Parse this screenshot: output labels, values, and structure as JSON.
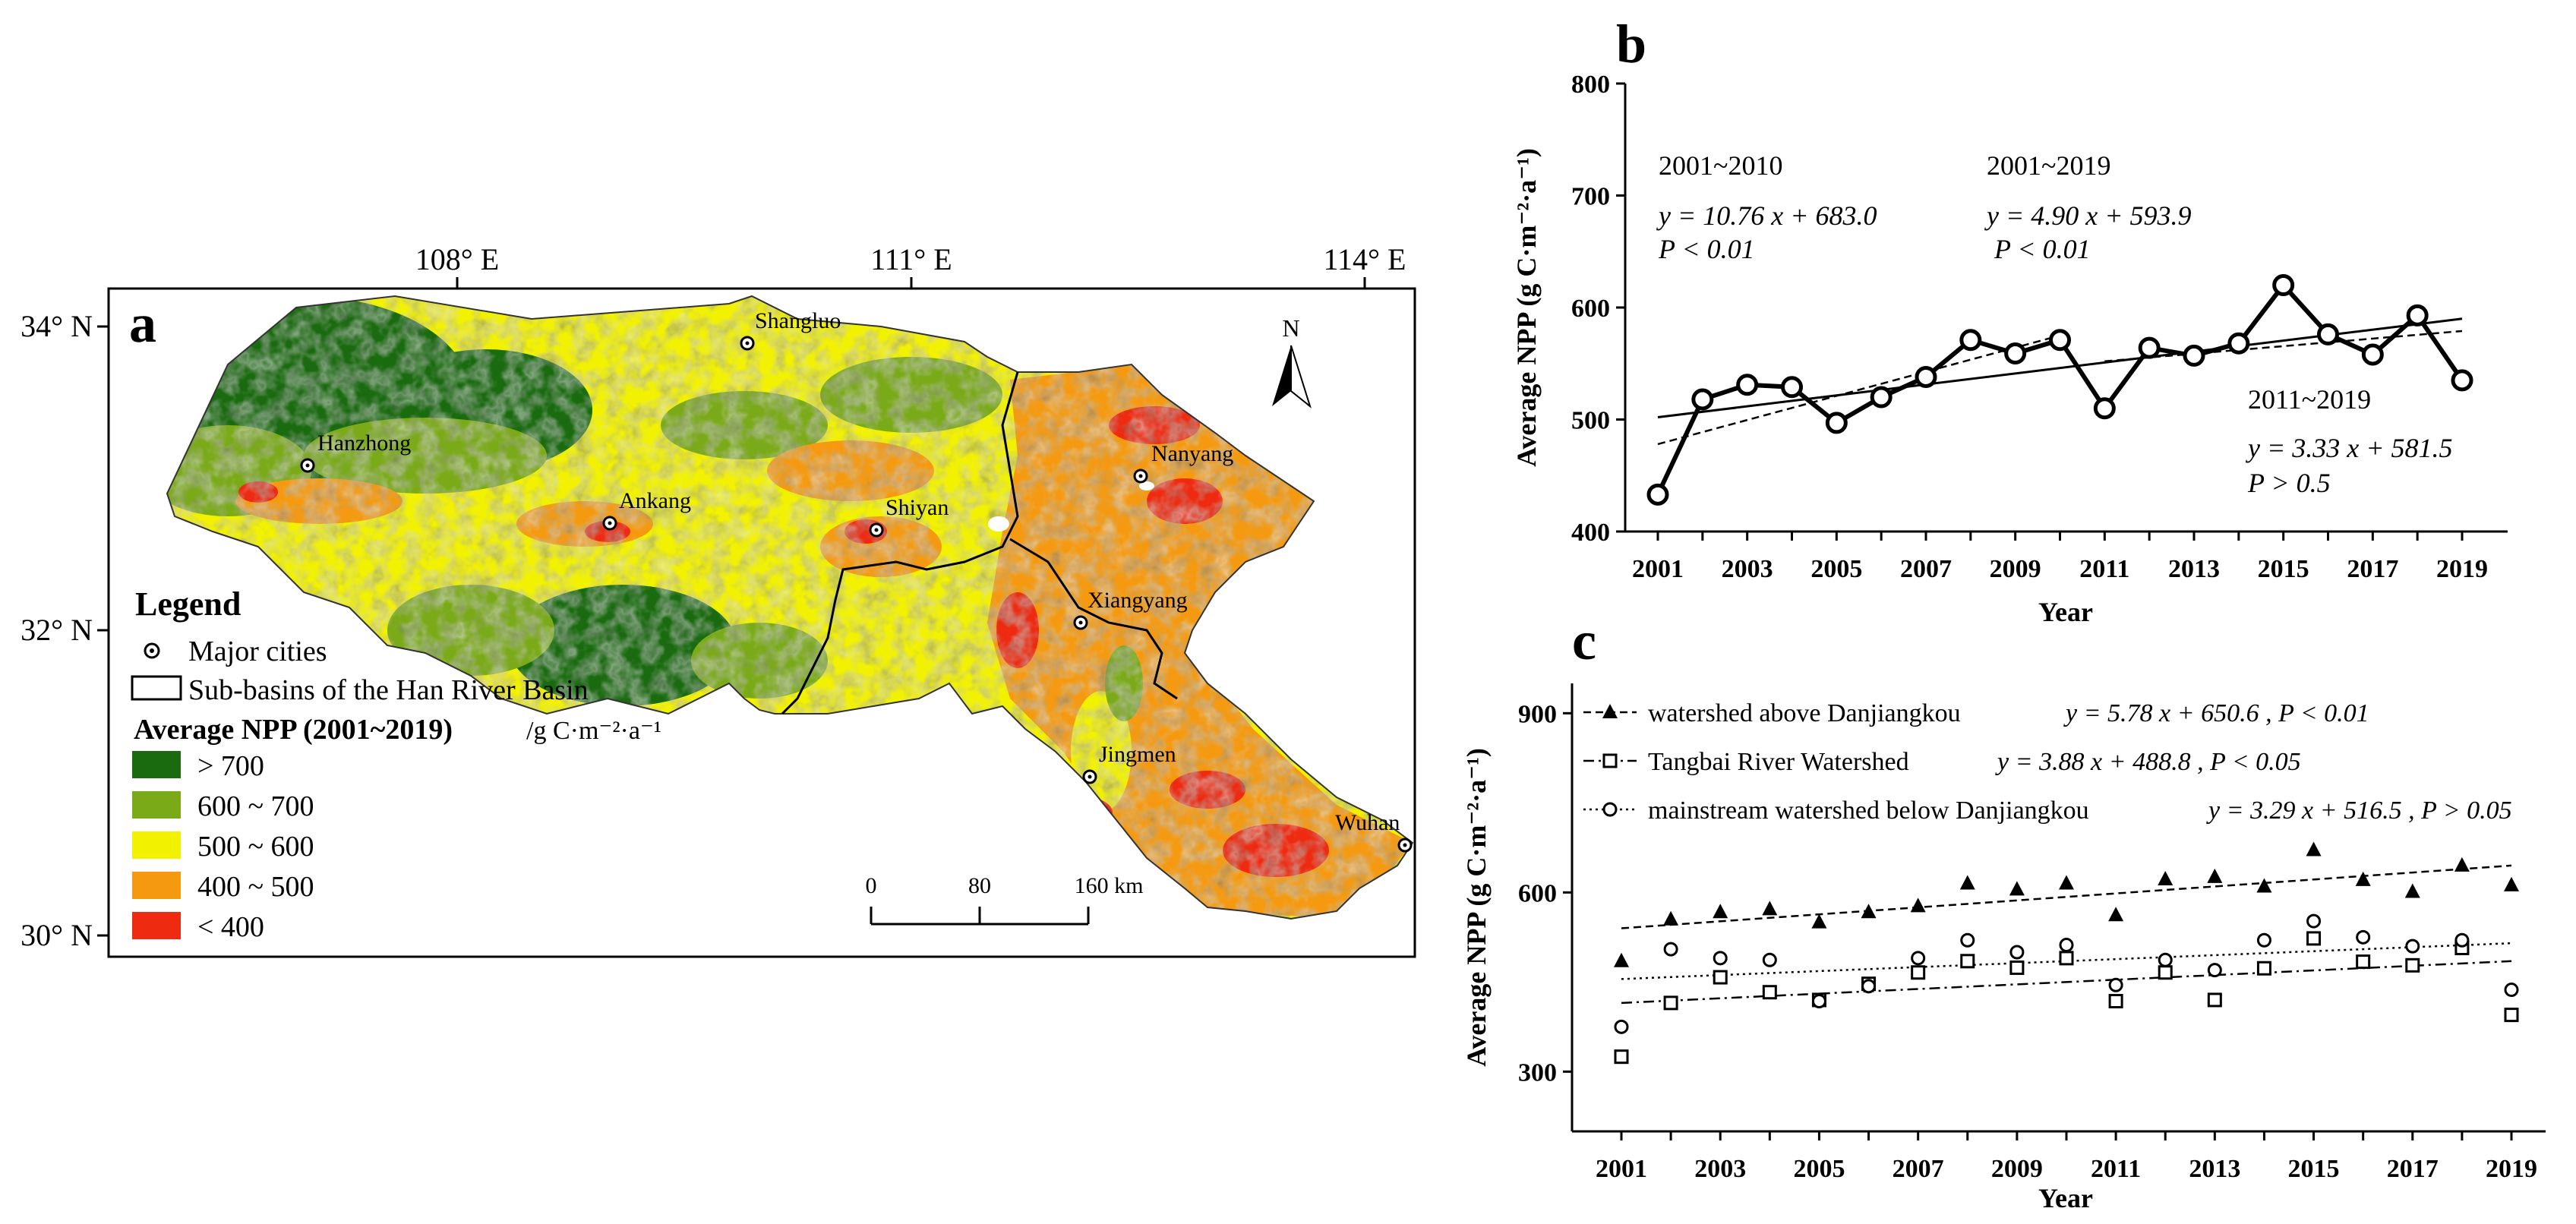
{
  "panel_a": {
    "panel_label": "a",
    "lon_labels": [
      "108° E",
      "111° E",
      "114° E"
    ],
    "lat_labels": [
      "34° N",
      "32° N",
      "30° N"
    ],
    "north_arrow": "N",
    "cities": [
      "Shangluo",
      "Hanzhong",
      "Ankang",
      "Shiyan",
      "Nanyang",
      "Xiangyang",
      "Jingmen",
      "Wuhan"
    ],
    "legend": {
      "title": "Legend",
      "cities_label": "Major cities",
      "subbasins_label": "Sub-basins of the Han River Basin",
      "npp_title": "Average NPP (2001~2019)",
      "npp_unit": "/g C·m⁻²·a⁻¹",
      "classes": [
        {
          "label": "> 700",
          "color": "#1a6b10"
        },
        {
          "label": "600 ~ 700",
          "color": "#7aaa18"
        },
        {
          "label": "500 ~ 600",
          "color": "#f2f200"
        },
        {
          "label": "400 ~ 500",
          "color": "#f59a10"
        },
        {
          "label": "< 400",
          "color": "#ee2a10"
        }
      ]
    },
    "scale_bar": {
      "ticks": [
        "0",
        "80",
        "160 km"
      ]
    }
  },
  "panel_b": {
    "panel_label": "b",
    "xlabel": "Year",
    "ylabel": "Average NPP (g C·m⁻²·a⁻¹)",
    "annotations": [
      {
        "period": "2001~2010",
        "equation": "y = 10.76 x + 683.0",
        "p": "P < 0.01"
      },
      {
        "period": "2001~2019",
        "equation": "y = 4.90 x + 593.9",
        "p": "P < 0.01"
      },
      {
        "period": "2011~2019",
        "equation": "y = 3.33 x + 581.5",
        "p": "P > 0.5"
      }
    ]
  },
  "panel_c": {
    "panel_label": "c",
    "xlabel": "Year",
    "ylabel": "Average NPP (g C·m⁻²·a⁻¹)",
    "legend": [
      {
        "name": "watershed above Danjiangkou",
        "equation": "y = 5.78 x + 650.6 ,  P < 0.01"
      },
      {
        "name": "Tangbai River Watershed",
        "equation": "y = 3.88 x + 488.8 ,  P < 0.05"
      },
      {
        "name": "mainstream watershed below Danjiangkou",
        "equation": "y = 3.29 x + 516.5 ,  P > 0.05"
      }
    ]
  },
  "chart_data": [
    {
      "type": "line",
      "title": "b",
      "xlabel": "Year",
      "ylabel": "Average NPP (g C·m⁻²·a⁻¹)",
      "x": [
        2001,
        2002,
        2003,
        2004,
        2005,
        2006,
        2007,
        2008,
        2009,
        2010,
        2011,
        2012,
        2013,
        2014,
        2015,
        2016,
        2017,
        2018,
        2019
      ],
      "xticks": [
        "2001",
        "2003",
        "2005",
        "2007",
        "2009",
        "2011",
        "2013",
        "2015",
        "2017",
        "2019"
      ],
      "ylim": [
        400,
        800
      ],
      "yticks": [
        "400",
        "500",
        "600",
        "700",
        "800"
      ],
      "series": [
        {
          "name": "Average NPP",
          "values": [
            433,
            518,
            531,
            529,
            497,
            520,
            538,
            571,
            559,
            571,
            510,
            564,
            557,
            568,
            620,
            576,
            558,
            593,
            535
          ]
        }
      ],
      "trendlines": [
        {
          "name": "2001~2019",
          "style": "solid",
          "points": [
            [
              2001,
              502
            ],
            [
              2019,
              590
            ]
          ]
        },
        {
          "name": "2001~2010",
          "style": "dashed",
          "points": [
            [
              2001,
              478
            ],
            [
              2010,
              575
            ]
          ]
        },
        {
          "name": "2011~2019",
          "style": "dashed",
          "points": [
            [
              2011,
              552
            ],
            [
              2019,
              579
            ]
          ]
        }
      ]
    },
    {
      "type": "scatter",
      "title": "c",
      "xlabel": "Year",
      "ylabel": "Average NPP (g C·m⁻²·a⁻¹)",
      "x": [
        2001,
        2002,
        2003,
        2004,
        2005,
        2006,
        2007,
        2008,
        2009,
        2010,
        2011,
        2012,
        2013,
        2014,
        2015,
        2016,
        2017,
        2018,
        2019
      ],
      "xticks": [
        "2001",
        "2003",
        "2005",
        "2007",
        "2009",
        "2011",
        "2013",
        "2015",
        "2017",
        "2019"
      ],
      "ylim": [
        200,
        950
      ],
      "yticks": [
        "300",
        "600",
        "900"
      ],
      "series": [
        {
          "name": "watershed above Danjiangkou",
          "marker": "triangle",
          "line": "dashed",
          "values": [
            485,
            555,
            567,
            572,
            550,
            567,
            577,
            615,
            605,
            615,
            562,
            622,
            626,
            610,
            671,
            621,
            601,
            645,
            612
          ],
          "trend": [
            [
              2001,
              540
            ],
            [
              2019,
              645
            ]
          ]
        },
        {
          "name": "Tangbai River Watershed",
          "marker": "square",
          "line": "dashdot",
          "values": [
            325,
            415,
            458,
            433,
            420,
            447,
            466,
            485,
            474,
            490,
            418,
            466,
            420,
            473,
            523,
            484,
            478,
            507,
            395
          ],
          "trend": [
            [
              2001,
              415
            ],
            [
              2019,
              485
            ]
          ]
        },
        {
          "name": "mainstream watershed below Danjiangkou",
          "marker": "circle",
          "line": "dotted",
          "values": [
            375,
            505,
            490,
            487,
            418,
            443,
            490,
            520,
            500,
            512,
            445,
            487,
            470,
            520,
            552,
            525,
            510,
            520,
            437
          ],
          "trend": [
            [
              2001,
              455
            ],
            [
              2019,
              515
            ]
          ]
        }
      ]
    }
  ]
}
